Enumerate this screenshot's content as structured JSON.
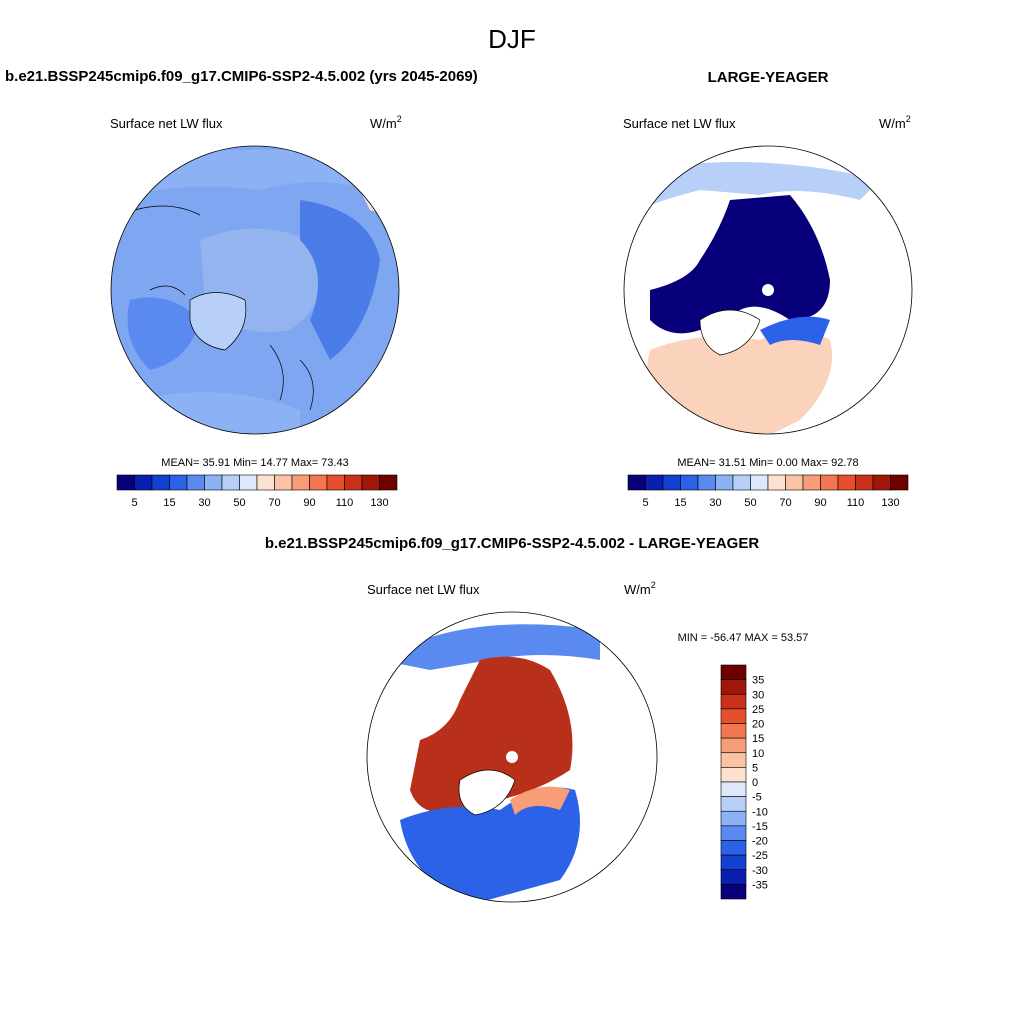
{
  "title": "DJF",
  "panels": [
    {
      "title": "b.e21.BSSP245cmip6.f09_g17.CMIP6-SSP2-4.5.002 (yrs 2045-2069)",
      "field": "Surface net LW flux",
      "units": "W/m",
      "units_power": "2",
      "stats": "MEAN=  35.91  Min=  14.77  Max=  73.43",
      "colorbar": {
        "labels": [
          "5",
          "15",
          "30",
          "50",
          "70",
          "90",
          "110",
          "130"
        ],
        "colors": [
          "#08007a",
          "#0a1eb0",
          "#1440d0",
          "#2b62e8",
          "#5a8af0",
          "#8cb1f5",
          "#b8d0f8",
          "#dde9fb",
          "#fde2d2",
          "#fbc3a6",
          "#f79d78",
          "#f2764f",
          "#e4502c",
          "#c8301a",
          "#a01608",
          "#6e0000"
        ]
      }
    },
    {
      "title": "LARGE-YEAGER",
      "field": "Surface net LW flux",
      "units": "W/m",
      "units_power": "2",
      "stats": "MEAN=  31.51  Min=   0.00  Max=  92.78",
      "colorbar": {
        "labels": [
          "5",
          "15",
          "30",
          "50",
          "70",
          "90",
          "110",
          "130"
        ],
        "colors": [
          "#08007a",
          "#0a1eb0",
          "#1440d0",
          "#2b62e8",
          "#5a8af0",
          "#8cb1f5",
          "#b8d0f8",
          "#dde9fb",
          "#fde2d2",
          "#fbc3a6",
          "#f79d78",
          "#f2764f",
          "#e4502c",
          "#c8301a",
          "#a01608",
          "#6e0000"
        ]
      }
    },
    {
      "title": "b.e21.BSSP245cmip6.f09_g17.CMIP6-SSP2-4.5.002 - LARGE-YEAGER",
      "field": "Surface net LW flux",
      "units": "W/m",
      "units_power": "2",
      "stats": "MIN = -56.47 MAX =  53.57",
      "colorbar": {
        "labels": [
          "35",
          "30",
          "25",
          "20",
          "15",
          "10",
          "5",
          "0",
          "-5",
          "-10",
          "-15",
          "-20",
          "-25",
          "-30",
          "-35"
        ],
        "colors": [
          "#6e0000",
          "#a01608",
          "#c8301a",
          "#e4502c",
          "#f2764f",
          "#f79d78",
          "#fbc3a6",
          "#fde2d2",
          "#dde9fb",
          "#b8d0f8",
          "#8cb1f5",
          "#5a8af0",
          "#2b62e8",
          "#1440d0",
          "#0a1eb0",
          "#08007a"
        ]
      }
    }
  ]
}
